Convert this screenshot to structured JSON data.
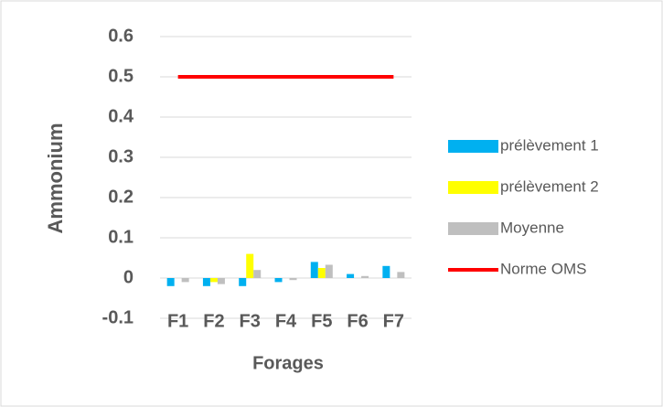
{
  "chart_data": {
    "type": "bar",
    "categories": [
      "F1",
      "F2",
      "F3",
      "F4",
      "F5",
      "F6",
      "F7"
    ],
    "series": [
      {
        "name": "prélèvement 1",
        "color": "#00b0f0",
        "values": [
          -0.02,
          -0.02,
          -0.02,
          -0.01,
          0.04,
          0.01,
          0.03
        ]
      },
      {
        "name": "prélèvement 2",
        "color": "#ffff00",
        "values": [
          0,
          -0.01,
          0.06,
          0,
          0.025,
          0,
          0
        ]
      },
      {
        "name": "Moyenne",
        "color": "#bfbfbf",
        "values": [
          -0.01,
          -0.015,
          0.02,
          -0.005,
          0.033,
          0.005,
          0.015
        ]
      },
      {
        "name": "Norme OMS",
        "color": "#ff0000",
        "type": "line",
        "values": [
          0.5,
          0.5,
          0.5,
          0.5,
          0.5,
          0.5,
          0.5
        ]
      }
    ],
    "xlabel": "Forages",
    "ylabel": "Ammonium",
    "ylim": [
      -0.1,
      0.6
    ],
    "yticks": [
      -0.1,
      0,
      0.1,
      0.2,
      0.3,
      0.4,
      0.5,
      0.6
    ],
    "grid": true,
    "legend": "right"
  }
}
